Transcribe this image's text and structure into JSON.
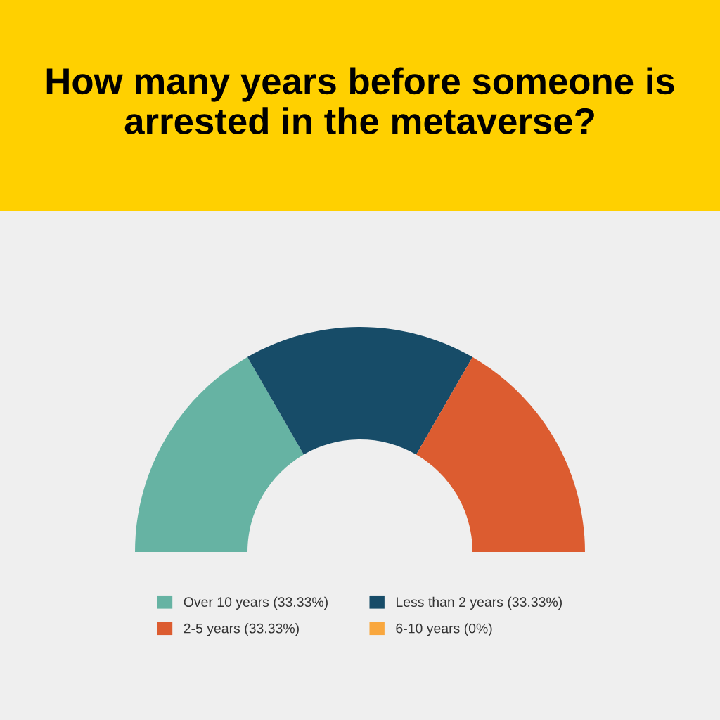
{
  "chart_data": {
    "type": "donut",
    "title": "How many years before someone is arrested in the metaverse?",
    "categories": [
      "Over 10 years (33.33%)",
      "Less than 2 years (33.33%)",
      "2-5 years (33.33%)",
      "6-10 years (0%)"
    ],
    "values": [
      33.33,
      33.33,
      33.33,
      0
    ],
    "colors": [
      "#66b3a3",
      "#174c68",
      "#dc5c30",
      "#f9a73e"
    ],
    "legend": "bottom"
  }
}
